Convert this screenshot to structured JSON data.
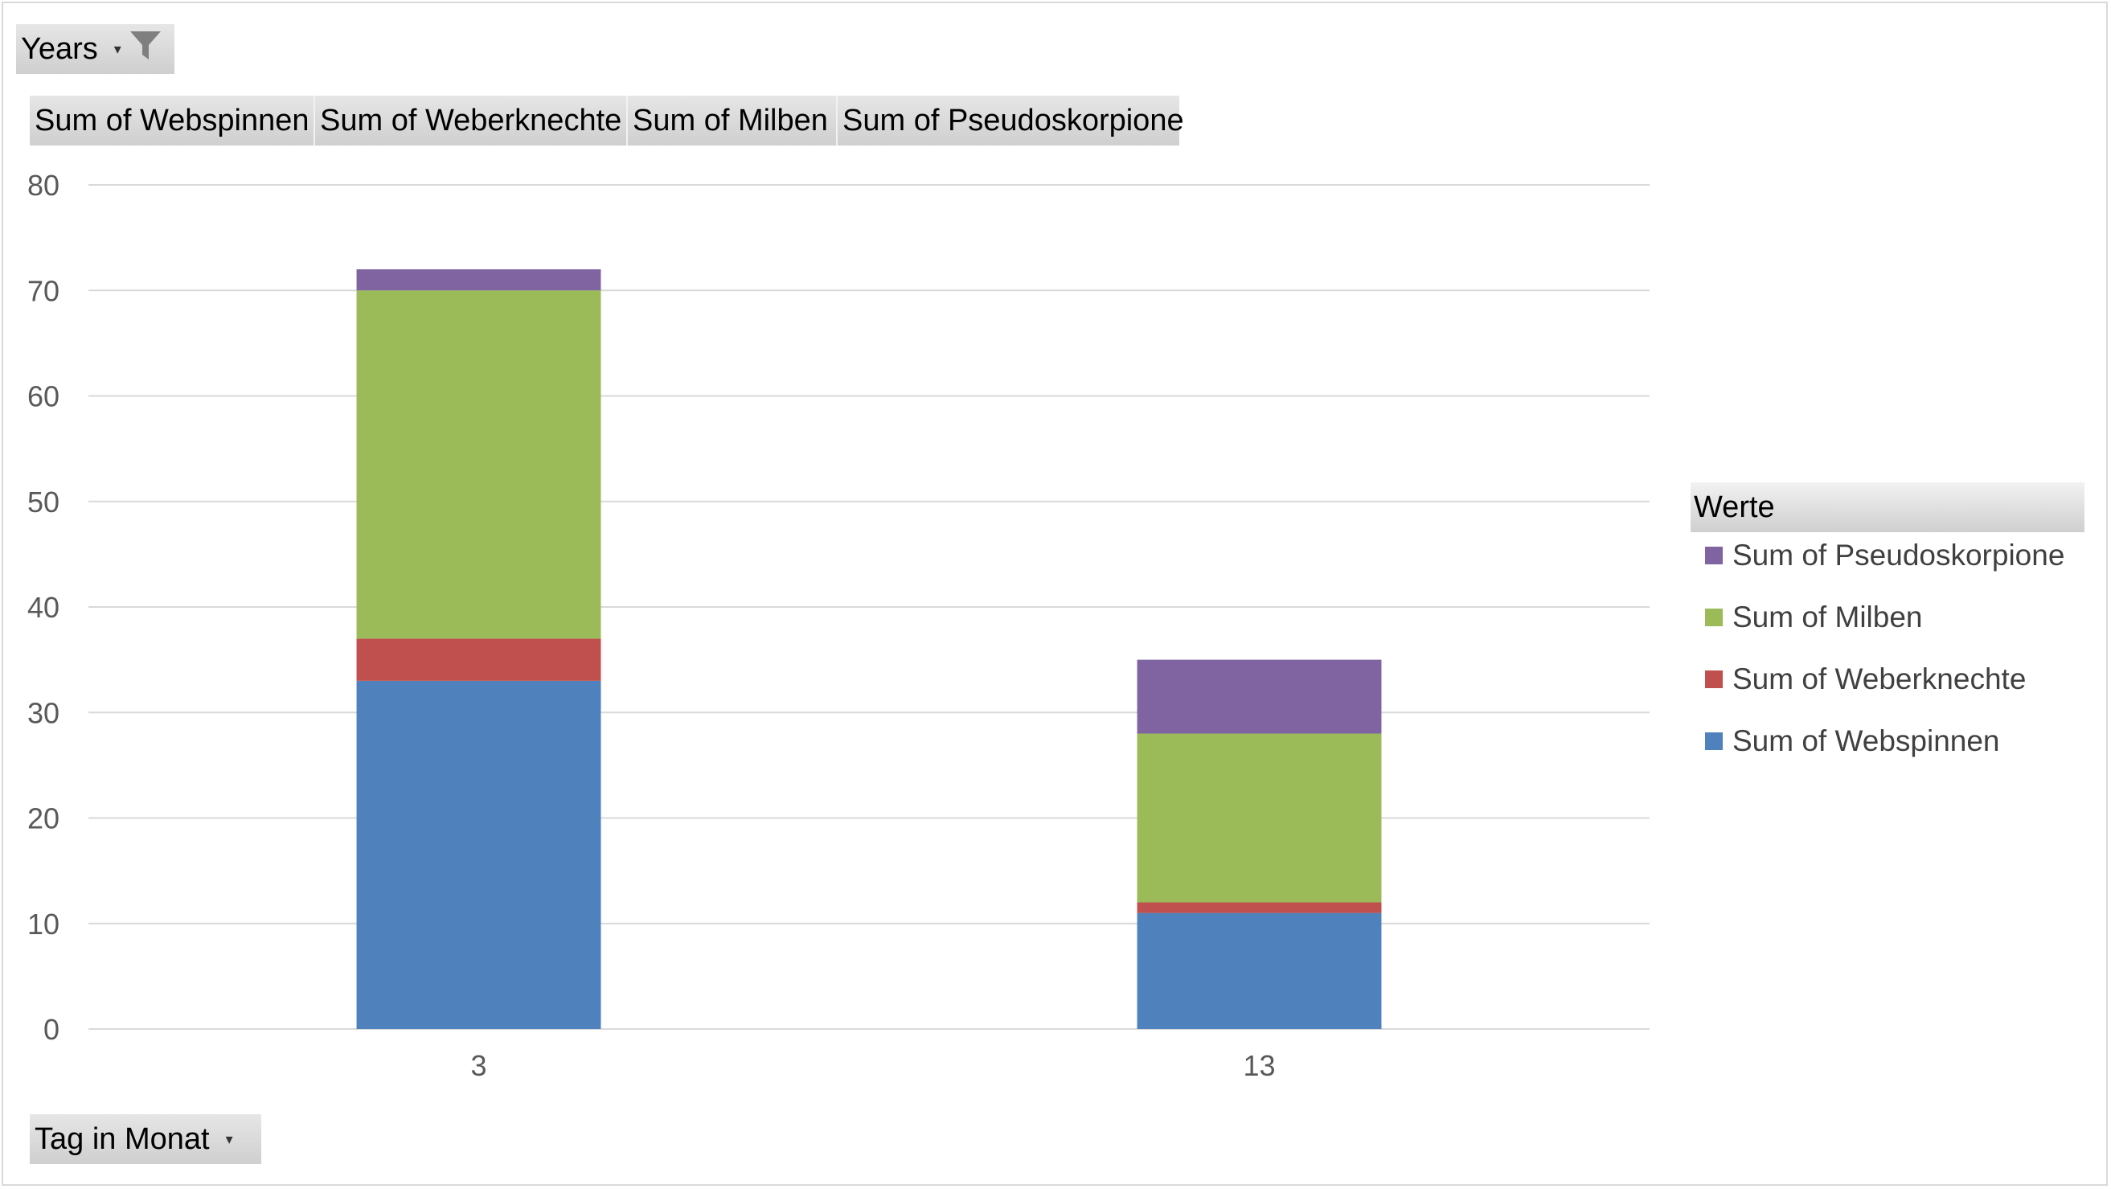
{
  "filters": {
    "years_label": "Years",
    "dropdown_glyph": "▾",
    "filter_icon": "funnel-icon"
  },
  "value_fields": [
    {
      "label": "Sum of Webspinnen"
    },
    {
      "label": "Sum of Weberknechte"
    },
    {
      "label": "Sum of Milben"
    },
    {
      "label": "Sum of Pseudoskorpione"
    }
  ],
  "axis_field": {
    "label": "Tag in Monat",
    "dropdown_glyph": "▾"
  },
  "legend": {
    "title": "Werte",
    "items": [
      {
        "label": "Sum of Pseudoskorpione",
        "color": "#8064a2"
      },
      {
        "label": "Sum of Milben",
        "color": "#9bbb59"
      },
      {
        "label": "Sum of Weberknechte",
        "color": "#c0504d"
      },
      {
        "label": "Sum of Webspinnen",
        "color": "#4f81bd"
      }
    ]
  },
  "chart_data": {
    "type": "bar",
    "stacked": true,
    "categories": [
      "3",
      "13"
    ],
    "series": [
      {
        "name": "Sum of Webspinnen",
        "values": [
          33,
          11
        ],
        "color": "#4f81bd"
      },
      {
        "name": "Sum of Weberknechte",
        "values": [
          4,
          1
        ],
        "color": "#c0504d"
      },
      {
        "name": "Sum of Milben",
        "values": [
          33,
          16
        ],
        "color": "#9bbb59"
      },
      {
        "name": "Sum of Pseudoskorpione",
        "values": [
          2,
          7
        ],
        "color": "#8064a2"
      }
    ],
    "ylim": [
      0,
      80
    ],
    "yticks": [
      0,
      10,
      20,
      30,
      40,
      50,
      60,
      70,
      80
    ],
    "grid": true,
    "legend_position": "right"
  }
}
